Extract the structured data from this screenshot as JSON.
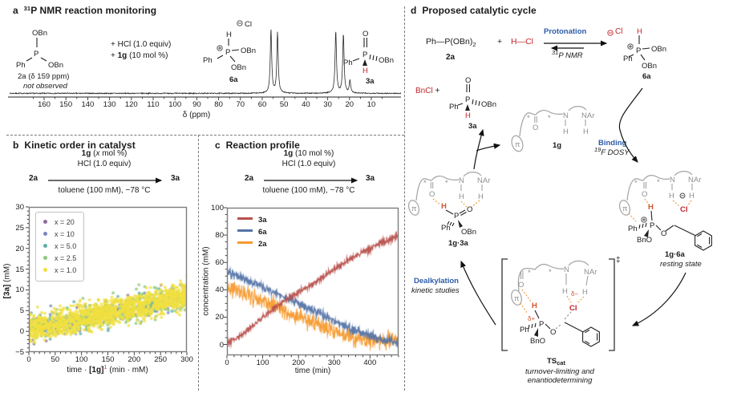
{
  "panel_a": {
    "label": "a",
    "title_sup": "31",
    "title_rest": "P NMR reaction monitoring",
    "s2a": {
      "obn_top": "OBn",
      "ph": "Ph",
      "p": "P",
      "obn_right": "OBn",
      "cap_bold": "2a",
      "cap_rest": " (δ 159 ppm)",
      "note": "not observed"
    },
    "cond1": "+ HCl (1.0 equiv)",
    "cond2_pre": "+ ",
    "cond2_bold": "1g",
    "cond2_post": " (10 mol %)",
    "s6a": {
      "cl": "Cl",
      "h": "H",
      "p": "P",
      "obn_right": "OBn",
      "obn_down": "OBn",
      "ph": "Ph",
      "label": "6a"
    },
    "s3a": {
      "o": "O",
      "p": "P",
      "ph": "Ph",
      "obn": "OBn",
      "h": "H",
      "label": "3a"
    }
  },
  "panel_b": {
    "label": "b",
    "title": "Kinetic order in catalyst",
    "scheme": {
      "l1_bold": "1g",
      "l1_mid": " (",
      "l1_x": "x",
      "l1_end": " mol %)",
      "l2": "HCl (1.0 equiv)",
      "from": "2a",
      "to": "3a",
      "below": "toluene (100 mM), −78 °C"
    },
    "xl_pre": "time · ",
    "xl_bold": "[1g]",
    "xl_sup": "1",
    "xl_post": " (min · mM)",
    "yl_bold": "[3a]",
    "yl_post": " (mM)"
  },
  "panel_c": {
    "label": "c",
    "title": "Reaction profile",
    "scheme": {
      "l1_bold": "1g",
      "l1_rest": " (10 mol %)",
      "l2": "HCl (1.0 equiv)",
      "from": "2a",
      "to": "3a",
      "below": "toluene (100 mM), −78 °C"
    }
  },
  "panel_d": {
    "label": "d",
    "title": "Proposed catalytic cycle",
    "eq": {
      "ph": "Ph",
      "dash": "—",
      "p_obn": "P(OBn)",
      "sub": "2",
      "r_label": "2a",
      "plus": "+",
      "h": "H",
      "hdash": "—",
      "cl": "Cl",
      "fwd": "Protonation",
      "rev_sup": "31",
      "rev_rest": "P NMR"
    },
    "cl_counterion": "Cl",
    "s6a": {
      "h": "H",
      "p": "P",
      "ph": "Ph",
      "obn_right": "OBn",
      "obn_down": "OBn",
      "label": "6a"
    },
    "byp": {
      "bncl": "BnCl",
      "plus": "+"
    },
    "s3a": {
      "o": "O",
      "p": "P",
      "ph": "Ph",
      "obn": "OBn",
      "h": "H",
      "label": "3a"
    },
    "s1g": {
      "pi": "π",
      "star1": "*",
      "o": "O",
      "star2": "*",
      "n": "N",
      "hn": "H",
      "nar": "NAr",
      "hnar": "H",
      "label": "1g"
    },
    "binding": {
      "l1": "Binding",
      "l2_sup": "19",
      "l2_rest": "F DOSY"
    },
    "s1g3a": {
      "pi": "π",
      "star1": "*",
      "o_c": "O",
      "star2": "*",
      "n": "N",
      "hn": "H",
      "nar": "NAr",
      "hnar": "H",
      "hp": "H",
      "p": "P",
      "o_p": "O",
      "ph": "Ph",
      "obn": "OBn",
      "label": "1g·3a"
    },
    "s1g6a": {
      "pi": "π",
      "star1": "*",
      "o_c": "O",
      "star2": "*",
      "n": "N",
      "hn": "H",
      "nar": "NAr",
      "hnar": "H",
      "cl": "Cl",
      "hp": "H",
      "p": "P",
      "ph": "Ph",
      "bno": "BnO",
      "o_e": "O",
      "label": "1g·6a",
      "state": "resting state"
    },
    "dealk": {
      "l1": "Dealkylation",
      "l2": "kinetic studies"
    },
    "ts": {
      "dd": "‡",
      "pi": "π",
      "star1": "*",
      "o_c": "O",
      "star2": "*",
      "n": "N",
      "hn": "H",
      "dm": "δ−",
      "nar": "NAr",
      "hnar": "H",
      "cl": "Cl",
      "hp": "H",
      "dp": "δ+",
      "p": "P",
      "ph": "Ph",
      "bno": "BnO",
      "o_e": "O",
      "label_main": "TS",
      "label_sub": "cat",
      "note1": "turnover-limiting and",
      "note2": "enantiodetermining"
    }
  },
  "chart_data": [
    {
      "id": "nmr_spectrum",
      "type": "line",
      "xlabel": "δ (ppm)",
      "x_range": [
        168,
        0
      ],
      "x_ticks": [
        160,
        150,
        140,
        130,
        120,
        110,
        100,
        90,
        80,
        70,
        60,
        50,
        40,
        30,
        20,
        10
      ],
      "peaks": [
        {
          "ppm": 56.0,
          "rel_height": 1.0,
          "assignment": "6a"
        },
        {
          "ppm": 53.0,
          "rel_height": 0.95,
          "assignment": "6a"
        },
        {
          "ppm": 26.3,
          "rel_height": 0.98,
          "assignment": "3a"
        },
        {
          "ppm": 22.8,
          "rel_height": 0.93,
          "assignment": "3a"
        },
        {
          "ppm": 19.8,
          "rel_height": 0.2,
          "assignment": "3a"
        }
      ],
      "not_observed_ppm": 159
    },
    {
      "id": "kinetic_order",
      "type": "scatter",
      "xlabel": "time · [1g]1 (min · mM)",
      "ylabel": "[3a] (mM)",
      "xlim": [
        0,
        300
      ],
      "ylim": [
        -5,
        30
      ],
      "x_ticks": [
        0,
        50,
        100,
        150,
        200,
        250,
        300
      ],
      "y_ticks": [
        30,
        25,
        20,
        15,
        10,
        5,
        0,
        -5
      ],
      "trend": {
        "slope": 0.027,
        "intercept": 0.4,
        "noise_sd": 1.6
      },
      "series": [
        {
          "label": "x = 20",
          "color": "#8d6b9e",
          "count": 70
        },
        {
          "label": "x = 10",
          "color": "#7b86c2",
          "count": 90
        },
        {
          "label": "x = 5.0",
          "color": "#5fafa5",
          "count": 180
        },
        {
          "label": "x = 2.5",
          "color": "#8cc87b",
          "count": 280
        },
        {
          "label": "x = 1.0",
          "color": "#f1e040",
          "count": 1300
        }
      ]
    },
    {
      "id": "reaction_profile",
      "type": "line",
      "xlabel": "time (min)",
      "ylabel": "concentration (mM)",
      "xlim": [
        0,
        480
      ],
      "ylim": [
        -8,
        100
      ],
      "x_ticks": [
        0,
        100,
        200,
        300,
        400
      ],
      "y_ticks": [
        100,
        80,
        60,
        40,
        20,
        0
      ],
      "series": [
        {
          "label": "3a",
          "color": "#b8504c",
          "noise_sd": 1.2,
          "points": [
            [
              0,
              0
            ],
            [
              50,
              9
            ],
            [
              100,
              20
            ],
            [
              150,
              30
            ],
            [
              200,
              38
            ],
            [
              250,
              46
            ],
            [
              300,
              55
            ],
            [
              350,
              63
            ],
            [
              400,
              70
            ],
            [
              440,
              75
            ],
            [
              480,
              80
            ]
          ]
        },
        {
          "label": "6a",
          "color": "#5474a8",
          "noise_sd": 1.5,
          "points": [
            [
              0,
              53
            ],
            [
              50,
              48
            ],
            [
              100,
              42
            ],
            [
              150,
              36
            ],
            [
              200,
              30
            ],
            [
              250,
              24
            ],
            [
              300,
              17
            ],
            [
              350,
              11
            ],
            [
              400,
              6
            ],
            [
              440,
              3
            ],
            [
              480,
              1
            ]
          ]
        },
        {
          "label": "2a",
          "color": "#f59b31",
          "noise_sd": 3.2,
          "points": [
            [
              0,
              41
            ],
            [
              50,
              37
            ],
            [
              100,
              32
            ],
            [
              150,
              26
            ],
            [
              200,
              20
            ],
            [
              250,
              15
            ],
            [
              300,
              10
            ],
            [
              350,
              5
            ],
            [
              400,
              3
            ],
            [
              440,
              2
            ],
            [
              480,
              4
            ]
          ]
        }
      ]
    }
  ]
}
